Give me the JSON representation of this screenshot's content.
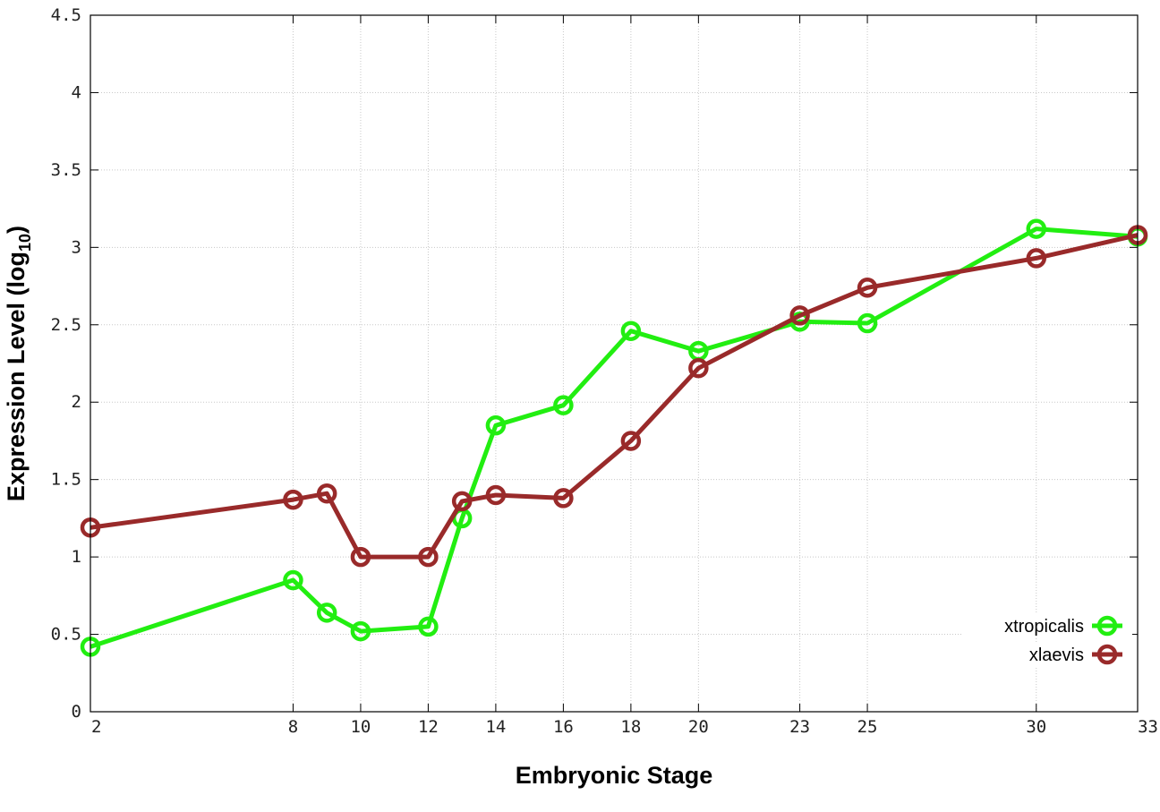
{
  "chart_data": {
    "type": "line",
    "xlabel": "Embryonic Stage",
    "ylabel": "Expression Level (log",
    "ylabel_subscript": "10",
    "ylabel_close": ")",
    "x": [
      2,
      8,
      9,
      10,
      12,
      13,
      14,
      16,
      18,
      20,
      23,
      25,
      30,
      33
    ],
    "x_ticks": [
      2,
      8,
      10,
      12,
      14,
      16,
      18,
      20,
      23,
      25,
      30,
      33
    ],
    "x_tick_labels": [
      "2",
      "8",
      "10",
      "12",
      "14",
      "16",
      "18",
      "20",
      "23",
      "25",
      "30",
      "33"
    ],
    "xlim": [
      2,
      33
    ],
    "y_ticks": [
      0,
      0.5,
      1,
      1.5,
      2,
      2.5,
      3,
      3.5,
      4,
      4.5
    ],
    "y_tick_labels": [
      "0",
      "0.5",
      "1",
      "1.5",
      "2",
      "2.5",
      "3",
      "3.5",
      "4",
      "4.5"
    ],
    "ylim": [
      0,
      4.5
    ],
    "grid": true,
    "legend_position": "bottom-right",
    "series": [
      {
        "name": "xtropicalis",
        "color": "#22ee11",
        "values": [
          0.42,
          0.85,
          0.64,
          0.52,
          0.55,
          1.25,
          1.85,
          1.98,
          2.46,
          2.33,
          2.52,
          2.51,
          3.12,
          3.07
        ]
      },
      {
        "name": "xlaevis",
        "color": "#992a2a",
        "values": [
          1.19,
          1.37,
          1.41,
          1.0,
          1.0,
          1.36,
          1.4,
          1.38,
          1.75,
          2.22,
          2.56,
          2.74,
          2.93,
          3.08
        ]
      }
    ]
  }
}
